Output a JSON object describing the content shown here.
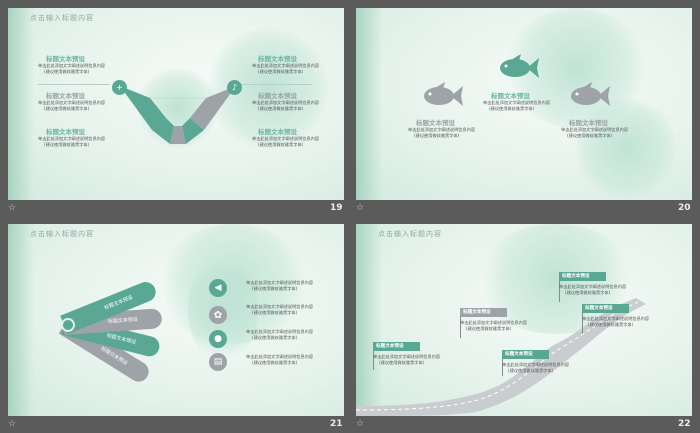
{
  "colors": {
    "teal": "#5aa894",
    "gray": "#9ea3a8",
    "bg": "#5b5b5b"
  },
  "slide19": {
    "title": "点击输入标题内容",
    "page": "19",
    "items": [
      {
        "heading": "标题文本预设",
        "body": [
          "单击此处添加文字阐述说明信息内容",
          "(建议使用微软雅黑字体)"
        ]
      },
      {
        "heading": "标题文本预设",
        "body": [
          "单击此处添加文字阐述说明信息内容",
          "(建议使用微软雅黑字体)"
        ]
      },
      {
        "heading": "标题文本预设",
        "body": [
          "单击此处添加文字阐述说明信息内容",
          "(建议使用微软雅黑字体)"
        ]
      },
      {
        "heading": "标题文本预设",
        "body": [
          "单击此处添加文字阐述说明信息内容",
          "(建议使用微软雅黑字体)"
        ]
      },
      {
        "heading": "标题文本预设",
        "body": [
          "单击此处添加文字阐述说明信息内容",
          "(建议使用微软雅黑字体)"
        ]
      },
      {
        "heading": "标题文本预设",
        "body": [
          "单击此处添加文字阐述说明信息内容",
          "(建议使用微软雅黑字体)"
        ]
      }
    ]
  },
  "slide20": {
    "page": "20",
    "items": [
      {
        "heading": "标题文本预设",
        "body": [
          "单击此处添加文字阐述说明信息内容",
          "(建议使用微软雅黑字体)"
        ]
      },
      {
        "heading": "标题文本预设",
        "body": [
          "单击此处添加文字阐述说明信息内容",
          "(建议使用微软雅黑字体)"
        ]
      },
      {
        "heading": "标题文本预设",
        "body": [
          "单击此处添加文字阐述说明信息内容",
          "(建议使用微软雅黑字体)"
        ]
      }
    ]
  },
  "slide21": {
    "title": "点击输入标题内容",
    "page": "21",
    "fan_labels": [
      "标题文本预设",
      "标题文本预设",
      "标题文本预设",
      "标题文本预设"
    ],
    "items": [
      {
        "body": [
          "单击此处添加文字阐述说明信息内容",
          "(建议使用微软雅黑字体)"
        ]
      },
      {
        "body": [
          "单击此处添加文字阐述说明信息内容",
          "(建议使用微软雅黑字体)"
        ]
      },
      {
        "body": [
          "单击此处添加文字阐述说明信息内容",
          "(建议使用微软雅黑字体)"
        ]
      },
      {
        "body": [
          "单击此处添加文字阐述说明信息内容",
          "(建议使用微软雅黑字体)"
        ]
      }
    ],
    "icons": [
      "volume-icon",
      "settings-icon",
      "chat-icon",
      "clipboard-icon"
    ]
  },
  "slide22": {
    "title": "点击输入标题内容",
    "page": "22",
    "flags": [
      {
        "heading": "标题文本预设",
        "body": [
          "单击此处添加文字阐述说明信息内容",
          "(建议使用微软雅黑字体)"
        ]
      },
      {
        "heading": "标题文本预设",
        "body": [
          "单击此处添加文字阐述说明信息内容",
          "(建议使用微软雅黑字体)"
        ]
      },
      {
        "heading": "标题文本预设",
        "body": [
          "单击此处添加文字阐述说明信息内容",
          "(建议使用微软雅黑字体)"
        ]
      },
      {
        "heading": "标题文本预设",
        "body": [
          "单击此处添加文字阐述说明信息内容",
          "(建议使用微软雅黑字体)"
        ]
      },
      {
        "heading": "标题文本预设",
        "body": [
          "单击此处添加文字阐述说明信息内容",
          "(建议使用微软雅黑字体)"
        ]
      }
    ]
  }
}
